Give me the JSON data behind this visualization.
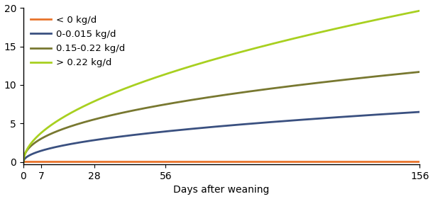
{
  "x_ticks": [
    0,
    7,
    28,
    56,
    156
  ],
  "xlabel": "Days after weaning",
  "ylim": [
    -0.3,
    20
  ],
  "yticks": [
    0,
    5,
    10,
    15,
    20
  ],
  "series": [
    {
      "label": "< 0 kg/d",
      "color": "#E8732A",
      "flat_value": 0.0,
      "A": 0,
      "B": 0
    },
    {
      "label": "0-0.015 kg/d",
      "color": "#3A5080",
      "A": 1.82,
      "B": 0.55
    },
    {
      "label": "0.15-0.22 kg/d",
      "color": "#787830",
      "A": 3.58,
      "B": 0.55
    },
    {
      "label": "> 0.22 kg/d",
      "color": "#A8D020",
      "A": 5.45,
      "B": 0.75
    }
  ],
  "legend_fontsize": 9.5,
  "axis_fontsize": 10,
  "tick_fontsize": 10,
  "linewidth": 2.0,
  "bg_color": "#ffffff"
}
